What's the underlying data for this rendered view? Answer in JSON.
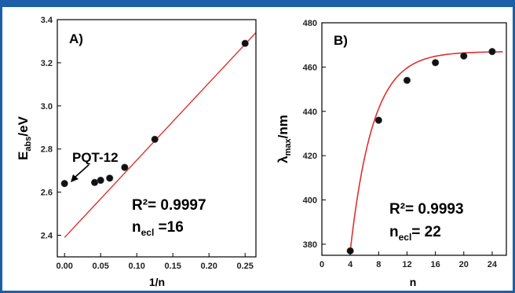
{
  "chart_data": [
    {
      "type": "scatter",
      "panel_label": "A)",
      "xlabel": "1/n",
      "ylabel": "E",
      "ylabel_sub": "abs",
      "ylabel_unit": "/eV",
      "xlim": [
        -0.01,
        0.265
      ],
      "ylim": [
        2.3,
        3.4
      ],
      "xticks": [
        "0.00",
        "0.05",
        "0.10",
        "0.15",
        "0.20",
        "0.25"
      ],
      "yticks": [
        "2.4",
        "2.6",
        "2.8",
        "3.0",
        "3.2",
        "3.4"
      ],
      "series": [
        {
          "values": [
            {
              "x": 0.0,
              "y": 2.64
            },
            {
              "x": 0.0417,
              "y": 2.645
            },
            {
              "x": 0.05,
              "y": 2.655
            },
            {
              "x": 0.0625,
              "y": 2.665
            },
            {
              "x": 0.0833,
              "y": 2.715
            },
            {
              "x": 0.125,
              "y": 2.845
            },
            {
              "x": 0.25,
              "y": 3.29
            }
          ]
        }
      ],
      "fit_line": {
        "x": [
          0.0,
          0.265
        ],
        "y": [
          2.39,
          3.34
        ]
      },
      "annotation_label": "PQT-12",
      "r2_text": "R²= 0.9997",
      "necl_main": "n",
      "necl_sub": "ecl",
      "necl_value": " =16"
    },
    {
      "type": "scatter",
      "panel_label": "B)",
      "xlabel": "n",
      "ylabel": "λ",
      "ylabel_sub": "max",
      "ylabel_unit": "/nm",
      "xlim": [
        0,
        26
      ],
      "ylim": [
        375,
        480
      ],
      "xticks": [
        "0",
        "4",
        "8",
        "12",
        "16",
        "20",
        "24"
      ],
      "yticks": [
        "380",
        "400",
        "420",
        "440",
        "460",
        "480"
      ],
      "series": [
        {
          "values": [
            {
              "x": 4,
              "y": 377
            },
            {
              "x": 8,
              "y": 436
            },
            {
              "x": 12,
              "y": 454
            },
            {
              "x": 16,
              "y": 462
            },
            {
              "x": 20,
              "y": 465
            },
            {
              "x": 24,
              "y": 467
            }
          ]
        }
      ],
      "fit_curve": {
        "asymptote": 467,
        "amplitude": 90,
        "n0": 4,
        "decay": 3.2,
        "x_start": 4,
        "x_end": 25.5
      },
      "r2_text": "R²= 0.9993",
      "necl_main": "n",
      "necl_sub": "ecl",
      "necl_value": "= 22"
    }
  ],
  "colors": {
    "frame": "#1c5fa8",
    "fit": "#e03030",
    "point": "#111111"
  }
}
